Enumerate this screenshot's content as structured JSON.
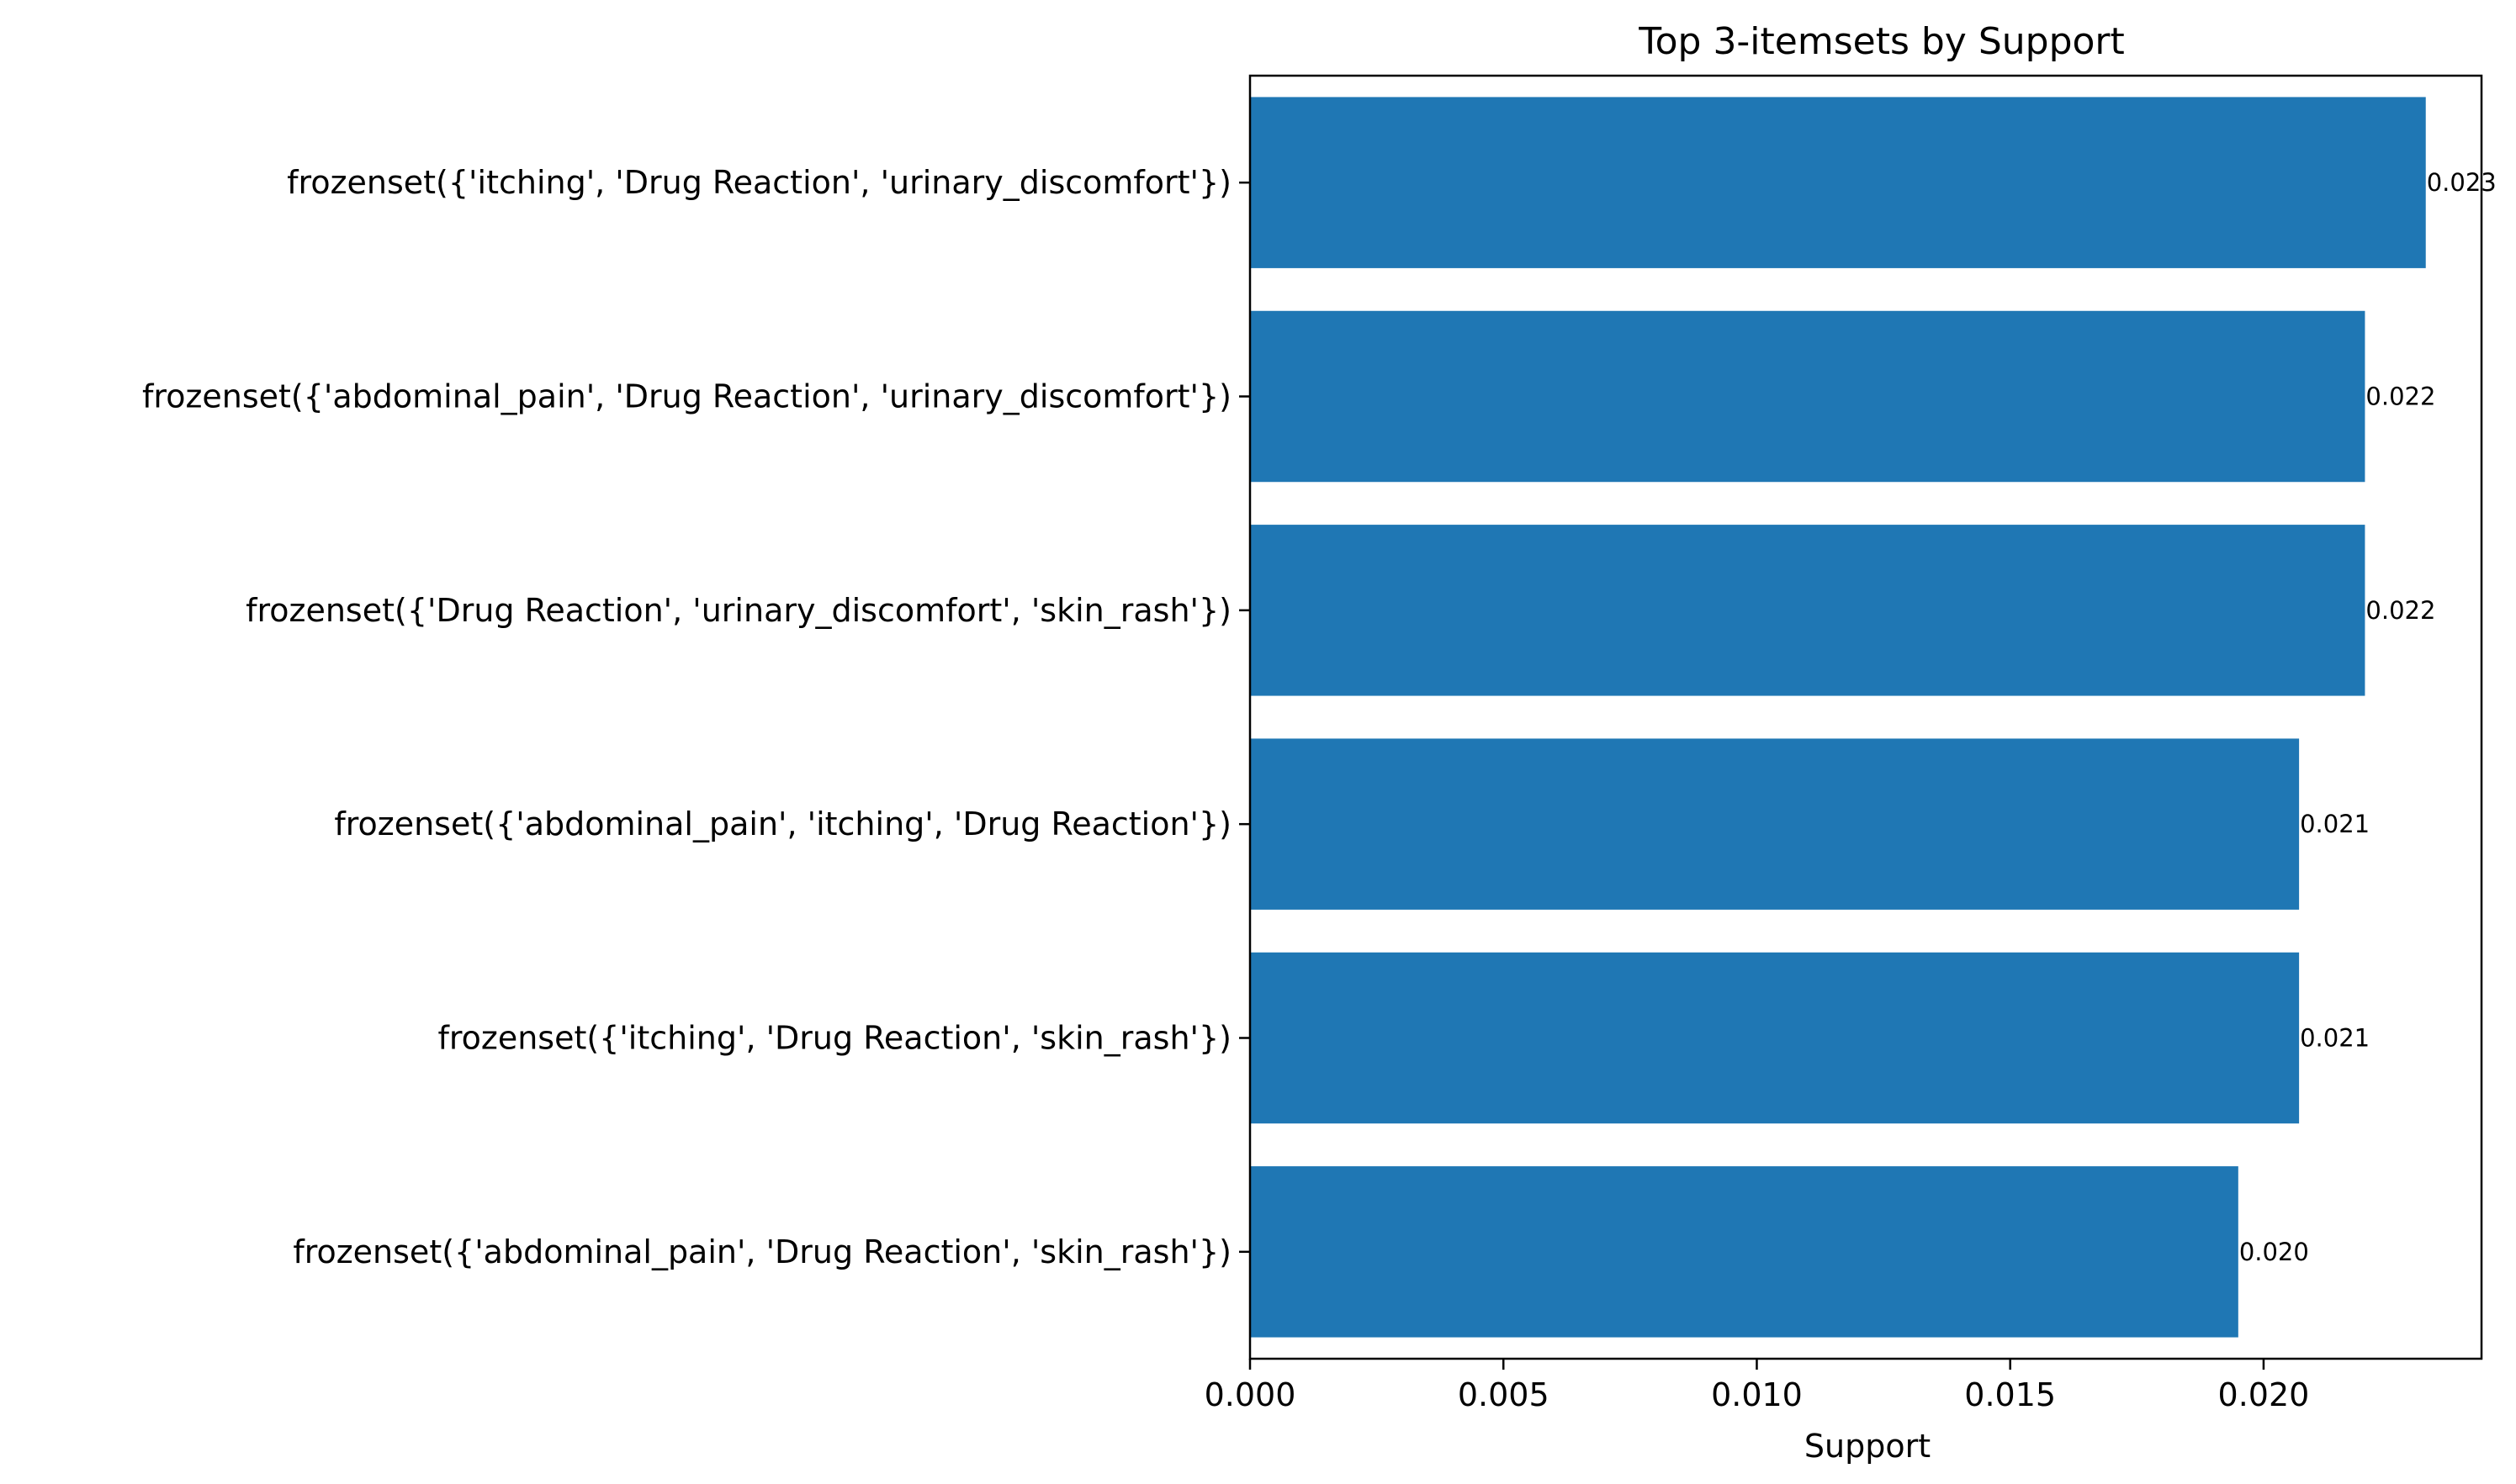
{
  "chart_data": {
    "type": "bar",
    "orientation": "horizontal",
    "title": "Top 3-itemsets by Support",
    "xlabel": "Support",
    "ylabel": "",
    "xlim": [
      0,
      0.0243
    ],
    "xticks": [
      0.0,
      0.005,
      0.01,
      0.015,
      0.02
    ],
    "xtick_labels": [
      "0.000",
      "0.005",
      "0.010",
      "0.015",
      "0.020"
    ],
    "categories": [
      "frozenset({'itching', 'Drug Reaction', 'urinary_discomfort'})",
      "frozenset({'abdominal_pain', 'Drug Reaction', 'urinary_discomfort'})",
      "frozenset({'Drug Reaction', 'urinary_discomfort', 'skin_rash'})",
      "frozenset({'abdominal_pain', 'itching', 'Drug Reaction'})",
      "frozenset({'itching', 'Drug Reaction', 'skin_rash'})",
      "frozenset({'abdominal_pain', 'Drug Reaction', 'skin_rash'})"
    ],
    "values": [
      0.0232,
      0.022,
      0.022,
      0.0207,
      0.0207,
      0.0195
    ],
    "value_labels": [
      "0.023",
      "0.022",
      "0.022",
      "0.021",
      "0.021",
      "0.020"
    ],
    "bar_color": "#1f77b4",
    "grid": false,
    "legend": "none"
  }
}
